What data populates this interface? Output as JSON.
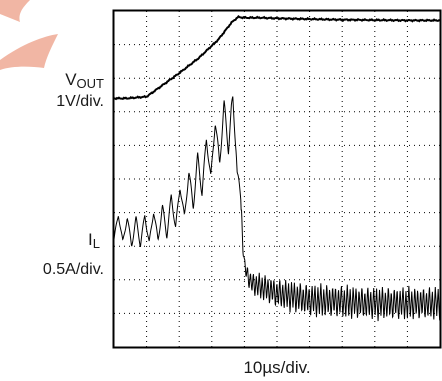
{
  "chart_data": {
    "type": "line",
    "title": "",
    "xlabel": "10µs/div.",
    "x_divisions": 10,
    "y_divisions": 10,
    "grid": true,
    "grid_style": "dotted",
    "series": [
      {
        "name": "V",
        "name_subscript": "OUT",
        "scale": "1V/div.",
        "color": "#000000",
        "x_div": [
          0,
          0.4,
          1.0,
          1.5,
          2.0,
          2.6,
          3.2,
          3.6,
          3.8,
          4.0,
          4.5,
          5,
          6,
          7,
          8,
          9,
          10
        ],
        "y_div": [
          7.4,
          7.4,
          7.45,
          7.8,
          8.15,
          8.6,
          9.15,
          9.65,
          9.82,
          9.8,
          9.8,
          9.78,
          9.76,
          9.74,
          9.73,
          9.72,
          9.72
        ]
      },
      {
        "name": "I",
        "name_subscript": "L",
        "scale": "0.5A/div.",
        "color": "#000000",
        "x_div": [
          0,
          0.3,
          0.6,
          1.0,
          1.5,
          2.0,
          2.5,
          3.0,
          3.4,
          3.6,
          3.75,
          3.9,
          4.0,
          4.2,
          4.5,
          5,
          6,
          7,
          8,
          9,
          10
        ],
        "y_div": [
          3.6,
          3.5,
          3.4,
          3.5,
          3.7,
          4.2,
          4.9,
          5.8,
          6.5,
          6.8,
          6.2,
          4.0,
          2.4,
          1.9,
          1.8,
          1.6,
          1.4,
          1.35,
          1.3,
          1.3,
          1.3
        ],
        "ripple_div": [
          0.8,
          0.8,
          0.8,
          0.9,
          1.0,
          1.1,
          1.3,
          1.5,
          1.6,
          1.6,
          1.4,
          0.8,
          0.5,
          0.6,
          0.7,
          0.8,
          0.9,
          0.9,
          0.9,
          0.9,
          0.9
        ]
      }
    ]
  }
}
